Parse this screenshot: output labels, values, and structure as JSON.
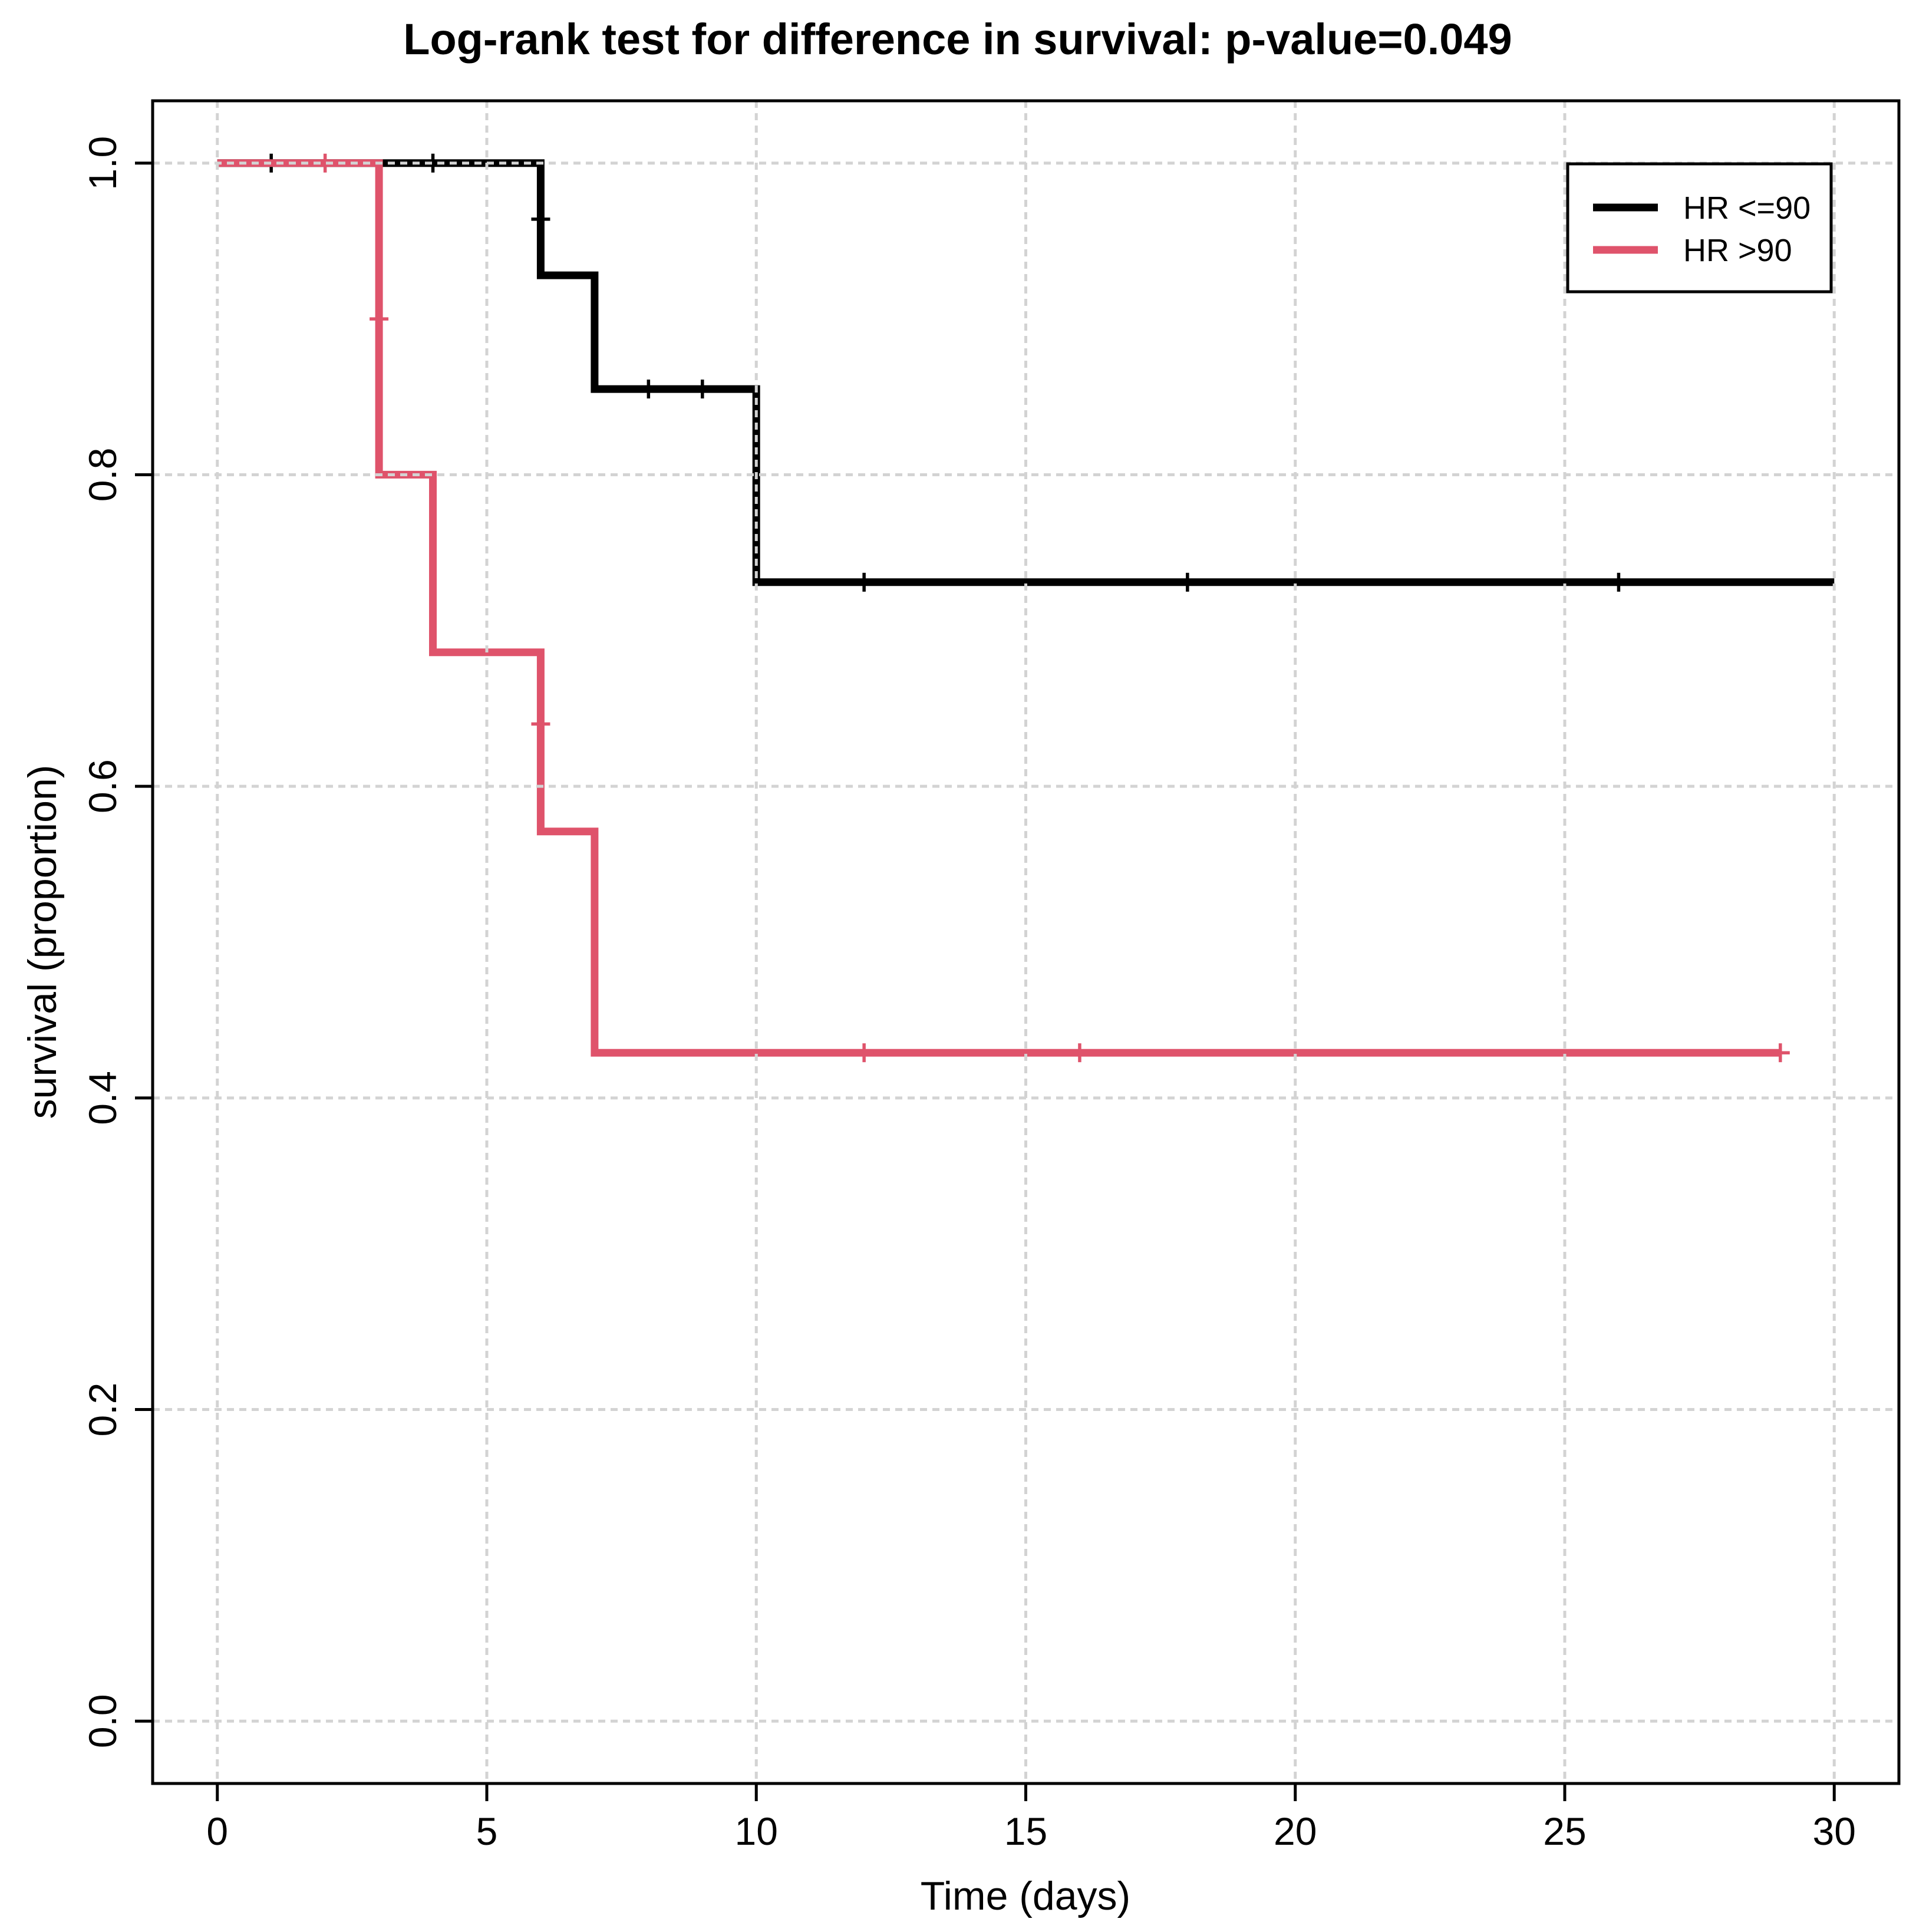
{
  "title": "Log-rank test for difference in survival: p-value=0.049",
  "chart_data": {
    "type": "line",
    "subtype": "kaplan-meier-step",
    "title": "Log-rank test for difference in survival: p-value=0.049",
    "p_value": "0.049",
    "xlabel": "Time (days)",
    "ylabel": "survival (proportion)",
    "xlim": [
      0,
      30
    ],
    "ylim": [
      0.0,
      1.0
    ],
    "grid": true,
    "grid_color": "#d3d3d3",
    "background_color": "#ffffff",
    "axis_color": "#000000",
    "xticks": [
      {
        "value": 0,
        "label": "0"
      },
      {
        "value": 5,
        "label": "5"
      },
      {
        "value": 10,
        "label": "10"
      },
      {
        "value": 15,
        "label": "15"
      },
      {
        "value": 20,
        "label": "20"
      },
      {
        "value": 25,
        "label": "25"
      },
      {
        "value": 30,
        "label": "30"
      }
    ],
    "yticks": [
      {
        "value": 0.0,
        "label": "0.0"
      },
      {
        "value": 0.2,
        "label": "0.2"
      },
      {
        "value": 0.4,
        "label": "0.4"
      },
      {
        "value": 0.6,
        "label": "0.6"
      },
      {
        "value": 0.8,
        "label": "0.8"
      },
      {
        "value": 1.0,
        "label": "1.0"
      }
    ],
    "legend": {
      "position": "top-right",
      "entries": [
        {
          "label": "HR <=90",
          "color": "#000000"
        },
        {
          "label": "HR >90",
          "color": "#df536b"
        }
      ]
    },
    "series": [
      {
        "name": "HR <=90",
        "color": "#000000",
        "steps": [
          [
            0,
            1.0
          ],
          [
            6,
            1.0
          ],
          [
            6,
            0.928
          ],
          [
            7,
            0.928
          ],
          [
            7,
            0.855
          ],
          [
            10,
            0.855
          ],
          [
            10,
            0.731
          ],
          [
            30,
            0.731
          ]
        ],
        "censor_marks": [
          [
            1,
            1.0
          ],
          [
            4,
            1.0
          ],
          [
            6,
            0.964
          ],
          [
            8,
            0.855
          ],
          [
            9,
            0.855
          ],
          [
            12,
            0.731
          ],
          [
            18,
            0.731
          ],
          [
            26,
            0.731
          ]
        ]
      },
      {
        "name": "HR >90",
        "color": "#df536b",
        "steps": [
          [
            0,
            1.0
          ],
          [
            3,
            1.0
          ],
          [
            3,
            0.8
          ],
          [
            4,
            0.8
          ],
          [
            4,
            0.686
          ],
          [
            6,
            0.686
          ],
          [
            6,
            0.571
          ],
          [
            7,
            0.571
          ],
          [
            7,
            0.429
          ],
          [
            29,
            0.429
          ]
        ],
        "censor_marks": [
          [
            2,
            1.0
          ],
          [
            3,
            0.9
          ],
          [
            6,
            0.64
          ],
          [
            12,
            0.429
          ],
          [
            16,
            0.429
          ],
          [
            29,
            0.429
          ]
        ]
      }
    ]
  }
}
